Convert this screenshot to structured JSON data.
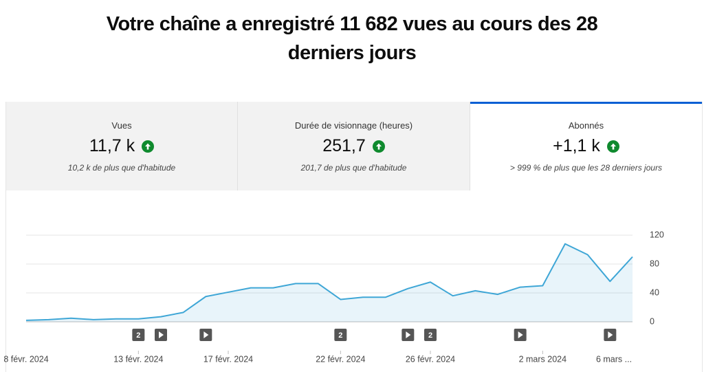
{
  "header": {
    "title": "Votre chaîne a enregistré 11 682 vues au cours des 28 derniers jours"
  },
  "tabs": [
    {
      "label": "Vues",
      "value": "11,7 k",
      "note": "10,2 k de plus que d'habitude"
    },
    {
      "label": "Durée de visionnage (heures)",
      "value": "251,7",
      "note": "201,7 de plus que d'habitude"
    },
    {
      "label": "Abonnés",
      "value": "+1,1 k",
      "note": "> 999 % de plus que les 28 derniers jours"
    }
  ],
  "chart_data": {
    "type": "line",
    "categories": [
      "8 févr. 2024",
      null,
      null,
      null,
      null,
      "13 févr. 2024",
      null,
      null,
      null,
      "17 févr. 2024",
      null,
      null,
      null,
      null,
      "22 févr. 2024",
      null,
      null,
      null,
      "26 févr. 2024",
      null,
      null,
      null,
      null,
      "2 mars 2024",
      null,
      null,
      null,
      "6 mars ..."
    ],
    "values": [
      2,
      3,
      5,
      3,
      4,
      4,
      7,
      13,
      35,
      41,
      47,
      47,
      53,
      53,
      31,
      34,
      34,
      46,
      55,
      36,
      43,
      38,
      48,
      50,
      108,
      93,
      56,
      90
    ],
    "color": "#3ea6d6",
    "ylim": [
      0,
      120
    ],
    "yticks": [
      0,
      40,
      80,
      120
    ],
    "grid": true,
    "events": [
      {
        "index": 5,
        "label": "2"
      },
      {
        "index": 6
      },
      {
        "index": 8
      },
      {
        "index": 14,
        "label": "2"
      },
      {
        "index": 17
      },
      {
        "index": 18,
        "label": "2"
      },
      {
        "index": 22
      },
      {
        "index": 26
      }
    ]
  }
}
